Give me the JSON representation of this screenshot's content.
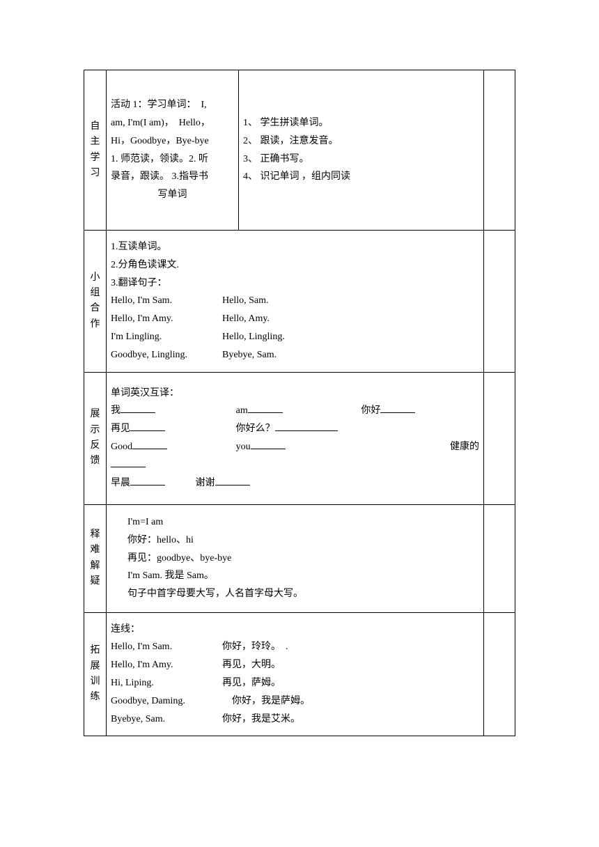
{
  "row1": {
    "label": "自主学习",
    "left": {
      "l1": "活动 1：学习单词：　I,",
      "l2": "am, I'm(I am)，　Hello，",
      "l3": " Hi，Goodbye，Bye-bye",
      "l4": "1. 师范读，领读。2. 听",
      "l5": "录音，跟读。 3.指导书",
      "l6": "写单词"
    },
    "right": {
      "l1": "1、 学生拼读单词。",
      "l2": "2、 跟读，注意发音。",
      "l3": "3、 正确书写。",
      "l4": "4、 识记单词 ，组内同读"
    }
  },
  "row2": {
    "label": "小组合作",
    "l1": "1.互读单词。",
    "l2": "2.分角色读课文.",
    "l3": "3.翻译句子：",
    "p1a": "Hello, I'm Sam.",
    "p1b": "Hello, Sam.",
    "p2a": "Hello, I'm Amy.",
    "p2b": "Hello, Amy.",
    "p3a": "I'm Lingling.",
    "p3b": "Hello, Lingling.",
    "p4a": "Goodbye, Lingling.",
    "p4b": "Byebye, Sam."
  },
  "row3": {
    "label": "展示反馈",
    "title": "单词英汉互译：",
    "a1": "我",
    "a2": "am",
    "a3": "你好",
    "b1": " 再见",
    "b2": "你好么？",
    "c1": "Good",
    "c2": "you",
    "c3": "健康的",
    "d1": "早晨",
    "d2": "谢谢"
  },
  "row4": {
    "label": "释难解疑",
    "l1": "I'm=I am",
    "l2": "你好：hello、hi",
    "l3": "再见：goodbye、bye-bye",
    "l4": "I'm Sam. 我是 Sam。",
    "l5": "句子中首字母要大写，人名首字母大写。"
  },
  "row5": {
    "label": "拓展训练",
    "title": "连线：",
    "p1a": "Hello, I'm Sam.",
    "p1b": "你好，玲玲。　.",
    "p2a": "Hello, I'm Amy.",
    "p2b": "再见，大明。",
    "p3a": "Hi, Liping.",
    "p3b": "再见，萨姆。",
    "p4a": "Goodbye, Daming.",
    "p4b": "　你好，我是萨姆。",
    "p5a": "Byebye, Sam.",
    "p5b": "你好，我是艾米。"
  }
}
